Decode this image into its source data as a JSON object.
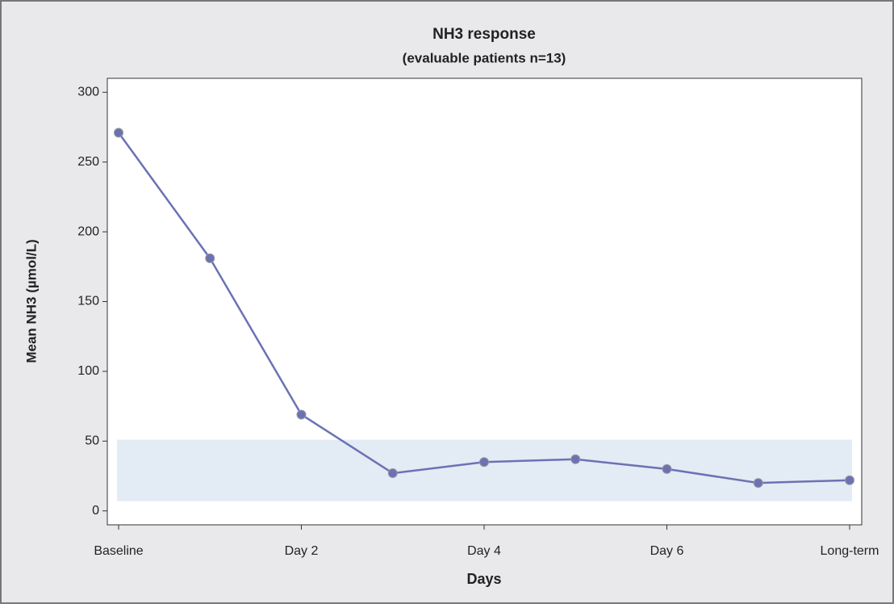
{
  "chart_data": {
    "type": "line",
    "title": "NH3 response",
    "subtitle": "(evaluable patients n=13)",
    "x_label": "Days",
    "y_label": "Mean NH3 (µmol/L)",
    "categories": [
      "Baseline",
      null,
      "Day 2",
      null,
      "Day 4",
      null,
      "Day 6",
      null,
      "Long-term"
    ],
    "values": [
      271,
      181,
      69,
      27,
      35,
      37,
      30,
      20,
      22
    ],
    "color": "#6b72b4",
    "band": [
      7,
      51
    ],
    "band_color": "#e3ebf5",
    "ylim": [
      -10,
      310
    ],
    "yticks": [
      0,
      50,
      100,
      150,
      200,
      250,
      300
    ],
    "grid": false
  }
}
